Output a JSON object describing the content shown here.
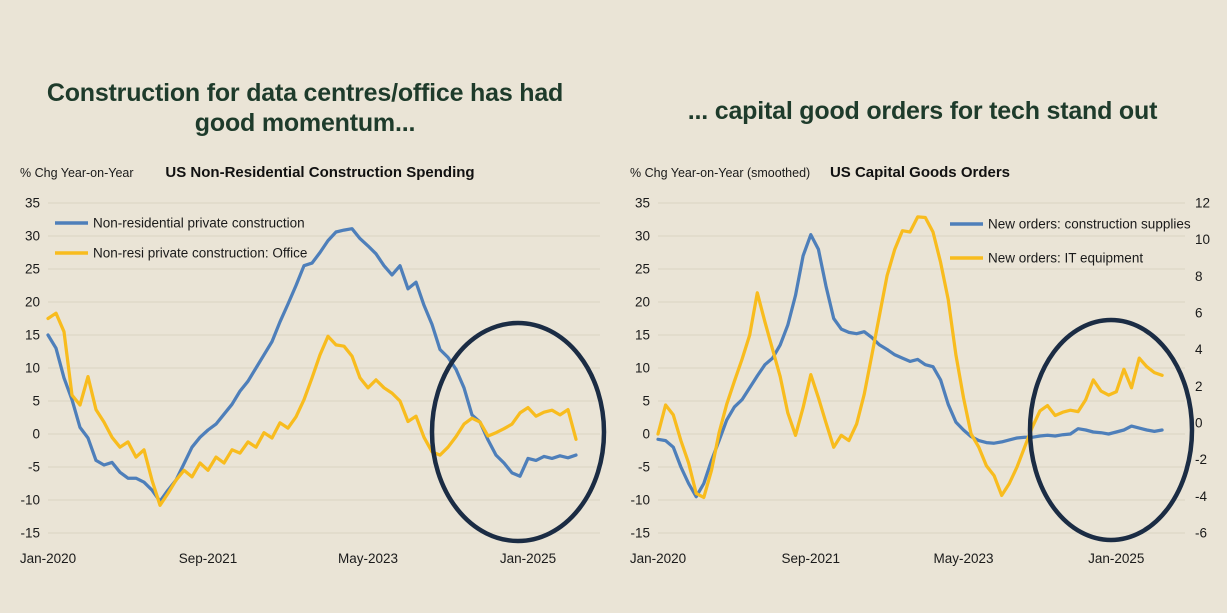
{
  "page": {
    "background_color": "#EAE4D6",
    "headline_color": "#1E3B2B",
    "text_color": "#1A1A1A",
    "gridline_color": "#D9D3C3"
  },
  "left_panel": {
    "headline": "Construction for data centres/office has had good momentum...",
    "axis_unit_label": "% Chg Year-on-Year",
    "chart_title": "US Non-Residential Construction Spending"
  },
  "right_panel": {
    "headline": "... capital good orders for tech stand out",
    "axis_unit_label": "% Chg Year-on-Year (smoothed)",
    "chart_title": "US Capital Goods Orders"
  },
  "chart_data": [
    {
      "type": "line",
      "title": "US Non-Residential Construction Spending",
      "ylabel": "% Chg Year-on-Year",
      "xlabel": "",
      "x_start": "Jan-2020",
      "frequency": "monthly",
      "n_points": 67,
      "x_tick_labels": [
        "Jan-2020",
        "Sep-2021",
        "May-2023",
        "Jan-2025"
      ],
      "x_tick_month_index": [
        0,
        20,
        40,
        60
      ],
      "x_axis_total_months": 70,
      "ylim": [
        -15,
        35
      ],
      "y_ticks": [
        35,
        30,
        25,
        20,
        15,
        10,
        5,
        0,
        -5,
        -10,
        -15
      ],
      "grid": true,
      "legend_position": "top-left",
      "series": [
        {
          "name": "Non-residential private construction",
          "color": "#4E7FBA",
          "values": [
            15,
            13,
            8.5,
            5.2,
            1,
            -0.6,
            -4,
            -4.7,
            -4.3,
            -5.8,
            -6.7,
            -6.7,
            -7.3,
            -8.5,
            -10.2,
            -8.5,
            -7,
            -4.5,
            -2,
            -0.5,
            0.6,
            1.5,
            3,
            4.5,
            6.5,
            8,
            10,
            12,
            14,
            17,
            19.7,
            22.5,
            25.5,
            25.9,
            27.5,
            29.3,
            30.6,
            30.9,
            31.1,
            29.6,
            28.5,
            27.3,
            25.5,
            24.1,
            25.5,
            22,
            23,
            19.5,
            16.6,
            12.8,
            11.6,
            9.8,
            7,
            2.9,
            1.8,
            -0.9,
            -3.2,
            -4.4,
            -5.9,
            -6.4,
            -3.7,
            -4,
            -3.4,
            -3.7,
            -3.3,
            -3.6,
            -3.2
          ]
        },
        {
          "name": "Non-resi private construction: Office",
          "color": "#F8BC1E",
          "values": [
            17.5,
            18.3,
            15.5,
            5.9,
            4.4,
            8.7,
            3.7,
            1.8,
            -0.5,
            -2,
            -1.2,
            -3.5,
            -2.4,
            -7,
            -10.8,
            -9,
            -7,
            -5.5,
            -6.5,
            -4.4,
            -5.5,
            -3.5,
            -4.4,
            -2.4,
            -2.9,
            -1.2,
            -2,
            0.2,
            -0.6,
            1.7,
            0.9,
            2.6,
            5.2,
            8.5,
            12,
            14.8,
            13.5,
            13.3,
            11.8,
            8.5,
            7,
            8.2,
            7,
            6.2,
            5,
            1.9,
            2.7,
            -0.5,
            -2.7,
            -3.2,
            -2,
            -0.4,
            1.5,
            2.4,
            1.8,
            -0.3,
            0.2,
            0.8,
            1.5,
            3.2,
            4,
            2.7,
            3.3,
            3.6,
            2.9,
            3.7,
            -0.8
          ]
        }
      ],
      "annotation": {
        "shape": "ellipse",
        "color": "#1B2C44",
        "purpose": "highlights recent months around Jan-2025"
      }
    },
    {
      "type": "line",
      "title": "US Capital Goods Orders",
      "ylabel": "% Chg Year-on-Year (smoothed)",
      "xlabel": "",
      "x_start": "Jan-2020",
      "frequency": "monthly",
      "n_points": 67,
      "x_tick_labels": [
        "Jan-2020",
        "Sep-2021",
        "May-2023",
        "Jan-2025"
      ],
      "x_tick_month_index": [
        0,
        20,
        40,
        60
      ],
      "x_axis_total_months": 70,
      "ylim": [
        -15,
        35
      ],
      "y_ticks": [
        35,
        30,
        25,
        20,
        15,
        10,
        5,
        0,
        -5,
        -10,
        -15
      ],
      "y2lim": [
        -6,
        12
      ],
      "y2_ticks": [
        12,
        10,
        8,
        6,
        4,
        2,
        0,
        -2,
        -4,
        -6
      ],
      "grid": true,
      "legend_position": "top-right",
      "values_read_against": "left axis",
      "series": [
        {
          "name": "New orders: construction supplies",
          "color": "#4E7FBA",
          "values": [
            -0.8,
            -1,
            -2,
            -5,
            -7.5,
            -9.5,
            -7.5,
            -4,
            -1,
            2.1,
            4.1,
            5.2,
            7,
            8.8,
            10.5,
            11.5,
            13.5,
            16.5,
            21,
            27,
            30.2,
            28,
            22.4,
            17.5,
            15.9,
            15.4,
            15.2,
            15.5,
            14.6,
            13.5,
            12.8,
            12,
            11.5,
            11,
            11.3,
            10.5,
            10.2,
            8.2,
            4.5,
            1.8,
            0.6,
            -0.4,
            -1,
            -1.3,
            -1.4,
            -1.2,
            -0.9,
            -0.6,
            -0.5,
            -0.5,
            -0.3,
            -0.2,
            -0.3,
            -0.1,
            0,
            0.8,
            0.6,
            0.3,
            0.2,
            0,
            0.3,
            0.6,
            1.2,
            0.9,
            0.6,
            0.4,
            0.6
          ]
        },
        {
          "name": "New orders: IT equipment",
          "color": "#F8BC1E",
          "values": [
            0,
            4.4,
            2.9,
            -1,
            -4.4,
            -9,
            -9.6,
            -5.5,
            0.2,
            4.5,
            8,
            11.3,
            15,
            21.4,
            17,
            12.8,
            8.7,
            3.2,
            -0.2,
            4,
            9,
            5.5,
            1.7,
            -2,
            -0.2,
            -1,
            1.5,
            6,
            12,
            18,
            24,
            28,
            30.8,
            30.6,
            32.9,
            32.8,
            30.6,
            26,
            20.4,
            12,
            5.5,
            0,
            -2,
            -4.8,
            -6.3,
            -9.3,
            -7.5,
            -5,
            -2,
            1,
            3.5,
            4.3,
            2.8,
            3.3,
            3.6,
            3.4,
            5.2,
            8.2,
            6.5,
            5.9,
            6.4,
            9.8,
            7,
            11.5,
            10.2,
            9.3,
            8.9
          ]
        }
      ],
      "annotation": {
        "shape": "ellipse",
        "color": "#1B2C44",
        "purpose": "highlights recent months around Jan-2025"
      }
    }
  ]
}
